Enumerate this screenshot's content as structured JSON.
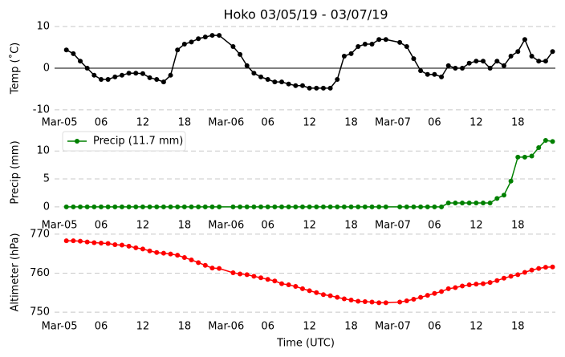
{
  "chart_data": [
    {
      "type": "line",
      "title": "Hoko 03/05/19 - 03/07/19",
      "ylabel": "Temp (˚C)",
      "x": [
        1,
        2,
        3,
        4,
        5,
        6,
        7,
        8,
        9,
        10,
        11,
        12,
        13,
        14,
        15,
        16,
        17,
        18,
        19,
        20,
        21,
        22,
        23,
        25,
        26,
        27,
        28,
        29,
        30,
        31,
        32,
        33,
        34,
        35,
        36,
        37,
        38,
        39,
        40,
        41,
        42,
        43,
        44,
        45,
        46,
        47,
        49,
        50,
        51,
        52,
        53,
        54,
        55,
        56,
        57,
        58,
        59,
        60,
        61,
        62,
        63,
        64,
        65,
        66,
        67,
        68,
        69,
        70,
        71
      ],
      "xlim": [
        -0.7,
        71.4
      ],
      "xticks": [
        {
          "value": 0,
          "label": "Mar-05"
        },
        {
          "value": 6,
          "label": "06"
        },
        12,
        18,
        {
          "value": 24,
          "label": "Mar-06"
        },
        {
          "value": 30,
          "label": "06"
        },
        {
          "value": 36,
          "label": "12"
        },
        {
          "value": 42,
          "label": "18"
        },
        {
          "value": 48,
          "label": "Mar-07"
        },
        {
          "value": 54,
          "label": "06"
        },
        {
          "value": 60,
          "label": "12"
        },
        {
          "value": 66,
          "label": "18"
        }
      ],
      "ylim": [
        -11,
        11
      ],
      "yticks": [
        -10,
        0,
        10
      ],
      "grid": true,
      "hline": 0,
      "series": [
        {
          "name": "Temp",
          "color": "#000000",
          "values": [
            4.4,
            3.5,
            1.7,
            0,
            -1.7,
            -2.7,
            -2.7,
            -2.1,
            -1.7,
            -1.2,
            -1.2,
            -1.3,
            -2.3,
            -2.7,
            -3.3,
            -1.7,
            4.4,
            5.8,
            6.3,
            7.1,
            7.5,
            7.9,
            7.9,
            5.2,
            3.3,
            0.6,
            -1.2,
            -2.1,
            -2.7,
            -3.3,
            -3.3,
            -3.8,
            -4.2,
            -4.2,
            -4.8,
            -4.8,
            -4.8,
            -4.8,
            -2.7,
            2.9,
            3.5,
            5.2,
            5.8,
            5.8,
            6.9,
            6.9,
            6.2,
            5.2,
            2.3,
            -0.6,
            -1.5,
            -1.5,
            -2.1,
            0.6,
            0,
            0,
            1.2,
            1.7,
            1.7,
            0,
            1.7,
            0.6,
            2.9,
            4.0,
            6.9,
            2.9,
            1.7,
            1.7,
            4.0
          ]
        }
      ]
    },
    {
      "type": "line",
      "ylabel": "Precip (mm)",
      "x": [
        1,
        2,
        3,
        4,
        5,
        6,
        7,
        8,
        9,
        10,
        11,
        12,
        13,
        14,
        15,
        16,
        17,
        18,
        19,
        20,
        21,
        22,
        23,
        25,
        26,
        27,
        28,
        29,
        30,
        31,
        32,
        33,
        34,
        35,
        36,
        37,
        38,
        39,
        40,
        41,
        42,
        43,
        44,
        45,
        46,
        47,
        49,
        50,
        51,
        52,
        53,
        54,
        55,
        56,
        57,
        58,
        59,
        60,
        61,
        62,
        63,
        64,
        65,
        66,
        67,
        68,
        69,
        70,
        71
      ],
      "xlim": [
        -0.7,
        71.4
      ],
      "xticks": [
        {
          "value": 0,
          "label": "Mar-05"
        },
        {
          "value": 6,
          "label": "06"
        },
        12,
        18,
        {
          "value": 24,
          "label": "Mar-06"
        },
        {
          "value": 30,
          "label": "06"
        },
        {
          "value": 36,
          "label": "12"
        },
        {
          "value": 42,
          "label": "18"
        },
        {
          "value": 48,
          "label": "Mar-07"
        },
        {
          "value": 54,
          "label": "06"
        },
        {
          "value": 60,
          "label": "12"
        },
        {
          "value": 66,
          "label": "18"
        }
      ],
      "ylim": [
        -0.6,
        12.9
      ],
      "yticks": [
        0,
        5,
        10
      ],
      "grid": true,
      "legend": "upper left",
      "series": [
        {
          "name": "Precip (11.7 mm)",
          "color": "#008000",
          "values": [
            0,
            0,
            0,
            0,
            0,
            0,
            0,
            0,
            0,
            0,
            0,
            0,
            0,
            0,
            0,
            0,
            0,
            0,
            0,
            0,
            0,
            0,
            0,
            0,
            0,
            0,
            0,
            0,
            0,
            0,
            0,
            0,
            0,
            0,
            0,
            0,
            0,
            0,
            0,
            0,
            0,
            0,
            0,
            0,
            0,
            0,
            0,
            0,
            0,
            0,
            0,
            0,
            0,
            0.7,
            0.7,
            0.7,
            0.7,
            0.7,
            0.7,
            0.7,
            1.5,
            2.1,
            4.6,
            8.9,
            8.9,
            9.1,
            10.6,
            11.9,
            11.7
          ]
        }
      ]
    },
    {
      "type": "line",
      "ylabel": "Altimeter (hPa)",
      "xlabel": "Time (UTC)",
      "x": [
        1,
        2,
        3,
        4,
        5,
        6,
        7,
        8,
        9,
        10,
        11,
        12,
        13,
        14,
        15,
        16,
        17,
        18,
        19,
        20,
        21,
        22,
        23,
        25,
        26,
        27,
        28,
        29,
        30,
        31,
        32,
        33,
        34,
        35,
        36,
        37,
        38,
        39,
        40,
        41,
        42,
        43,
        44,
        45,
        46,
        47,
        49,
        50,
        51,
        52,
        53,
        54,
        55,
        56,
        57,
        58,
        59,
        60,
        61,
        62,
        63,
        64,
        65,
        66,
        67,
        68,
        69,
        70,
        71
      ],
      "xlim": [
        -0.7,
        71.4
      ],
      "xticks": [
        {
          "value": 0,
          "label": "Mar-05"
        },
        {
          "value": 6,
          "label": "06"
        },
        12,
        18,
        {
          "value": 24,
          "label": "Mar-06"
        },
        {
          "value": 30,
          "label": "06"
        },
        {
          "value": 36,
          "label": "12"
        },
        {
          "value": 42,
          "label": "18"
        },
        {
          "value": 48,
          "label": "Mar-07"
        },
        {
          "value": 54,
          "label": "06"
        },
        {
          "value": 60,
          "label": "12"
        },
        {
          "value": 66,
          "label": "18"
        }
      ],
      "ylim": [
        749.4,
        771
      ],
      "yticks": [
        750,
        760,
        770
      ],
      "grid": true,
      "series": [
        {
          "name": "Altimeter",
          "color": "#ff0000",
          "values": [
            768.3,
            768.3,
            768.2,
            768.0,
            767.8,
            767.7,
            767.6,
            767.3,
            767.2,
            766.9,
            766.5,
            766.2,
            765.7,
            765.3,
            765.1,
            764.9,
            764.6,
            764.0,
            763.4,
            762.7,
            762.0,
            761.3,
            761.2,
            760.1,
            759.8,
            759.6,
            759.2,
            758.8,
            758.4,
            758.0,
            757.3,
            757.0,
            756.6,
            756.0,
            755.5,
            755.0,
            754.5,
            754.2,
            753.8,
            753.4,
            753.1,
            752.8,
            752.7,
            752.6,
            752.4,
            752.4,
            752.6,
            752.9,
            753.3,
            753.8,
            754.3,
            754.8,
            755.3,
            756.0,
            756.3,
            756.7,
            757.0,
            757.2,
            757.3,
            757.6,
            758.1,
            758.7,
            759.2,
            759.6,
            760.2,
            760.8,
            761.2,
            761.5,
            761.6
          ]
        }
      ]
    }
  ]
}
